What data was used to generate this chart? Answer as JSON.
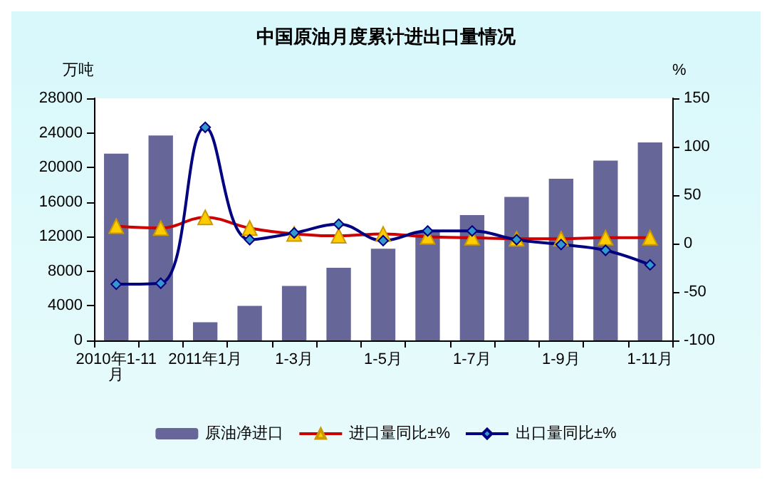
{
  "chart_data": {
    "type": "bar",
    "title": "中国原油月度累计进出口量情况",
    "ylabel": "万吨",
    "y2label": "%",
    "categories": [
      "2010年1-11月",
      null,
      "2011年1月",
      null,
      "1-3月",
      null,
      "1-5月",
      null,
      "1-7月",
      null,
      "1-9月",
      null,
      "1-11月"
    ],
    "series": [
      {
        "name": "原油净进口",
        "color": "#666699",
        "values": [
          21600,
          23700,
          2100,
          4000,
          6300,
          8400,
          10600,
          12600,
          14500,
          16600,
          18700,
          20800,
          22900
        ]
      },
      {
        "name": "进口量同比±%",
        "type": "line",
        "axis": "y2",
        "color": "#cc0000",
        "marker": "triangle",
        "values": [
          18,
          16,
          27,
          16,
          10,
          8,
          10,
          7,
          6,
          5,
          5,
          6,
          6
        ]
      },
      {
        "name": "出口量同比±%",
        "type": "line",
        "axis": "y2",
        "color": "#000080",
        "marker": "diamond",
        "values": [
          -42,
          -41,
          120,
          4,
          11,
          20,
          3,
          13,
          13,
          4,
          -1,
          -7,
          -22
        ]
      }
    ],
    "ylim": [
      0,
      28000
    ],
    "yticks": [
      0,
      4000,
      8000,
      12000,
      16000,
      20000,
      24000,
      28000
    ],
    "y2lim": [
      -100,
      150
    ],
    "y2ticks": [
      -100,
      -50,
      0,
      50,
      100,
      150
    ],
    "grid": false,
    "legend": "bottom"
  }
}
